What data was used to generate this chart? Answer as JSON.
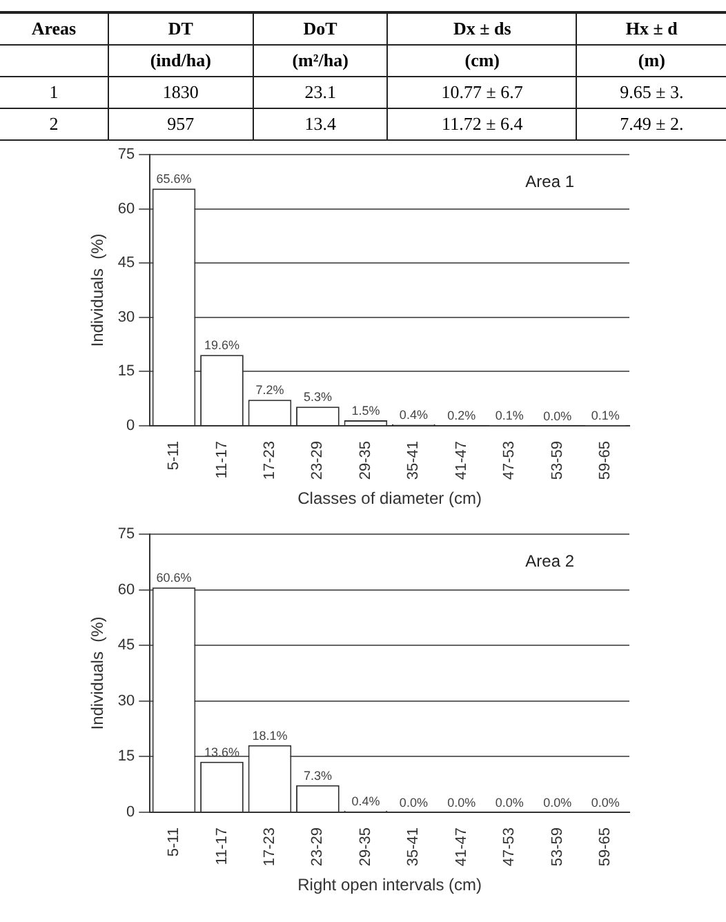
{
  "chart_data": [
    {
      "type": "other",
      "annotations": [
        "Areas",
        "DT",
        "DoT",
        "Dx ± ds",
        "Hx ± d",
        null,
        "(ind/ha)",
        "(m²/ha)",
        "(cm)",
        "(m)",
        "1",
        "1830",
        "23.1",
        "10.77 ± 6.7",
        "9.65 ± 3.",
        "2",
        "957",
        "13.4",
        "11.72 ± 6.4",
        "7.49 ± 2."
      ]
    },
    {
      "type": "bar",
      "categories": [
        "5-11",
        "11-17",
        "17-23",
        "23-29",
        "29-35",
        "35-41",
        "41-47",
        "47-53",
        "53-59",
        "59-65"
      ],
      "values": [
        65.6,
        19.6,
        7.2,
        5.3,
        1.5,
        0.4,
        0.2,
        0.1,
        0.0,
        0.1
      ],
      "value_labels": [
        "65.6%",
        "19.6%",
        "7.2%",
        "5.3%",
        "1.5%",
        "0.4%",
        "0.2%",
        "0.1%",
        "0.0%",
        "0.1%"
      ],
      "color": "#ffffff",
      "xlabel": "Classes of diameter (cm)",
      "ylabel": "Individuals  (%)",
      "ylim": [
        0,
        75
      ],
      "yticks": [
        0,
        15,
        30,
        45,
        60,
        75
      ],
      "grid": "y",
      "annotations": [
        "Area 1"
      ]
    },
    {
      "type": "bar",
      "categories": [
        "5-11",
        "11-17",
        "17-23",
        "23-29",
        "29-35",
        "35-41",
        "41-47",
        "47-53",
        "53-59",
        "59-65"
      ],
      "values": [
        60.6,
        13.6,
        18.1,
        7.3,
        0.4,
        0.0,
        0.0,
        0.0,
        0.0,
        0.0
      ],
      "value_labels": [
        "60.6%",
        "13.6%",
        "18.1%",
        "7.3%",
        "0.4%",
        "0.0%",
        "0.0%",
        "0.0%",
        "0.0%",
        "0.0%"
      ],
      "color": "#ffffff",
      "xlabel": "Right open intervals (cm)",
      "ylabel": "Individuals  (%)",
      "ylim": [
        0,
        75
      ],
      "yticks": [
        0,
        15,
        30,
        45,
        60,
        75
      ],
      "grid": "y",
      "annotations": [
        "Area 2"
      ]
    }
  ]
}
